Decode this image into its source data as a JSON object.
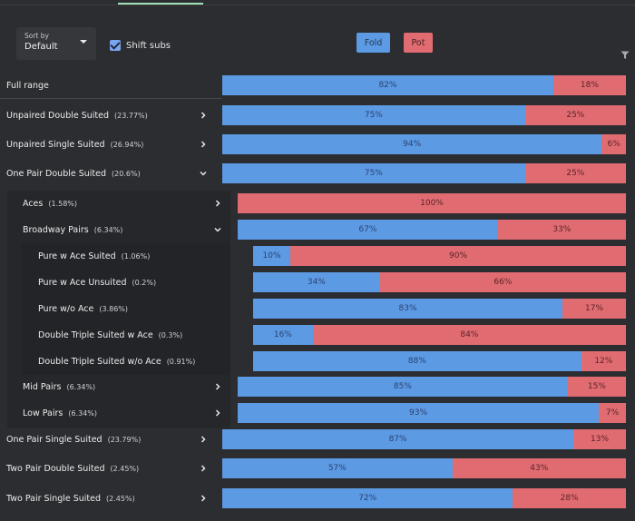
{
  "controls": {
    "sort_label": "Sort by",
    "sort_value": "Default",
    "shift_subs_label": "Shift subs",
    "shift_subs_checked": true
  },
  "legend": {
    "fold": "Fold",
    "pot": "Pot"
  },
  "colors": {
    "fold": "#5c9ae4",
    "pot": "#e06c72",
    "accent": "#9fe0b6"
  },
  "rows": [
    {
      "label": "Full range",
      "pct": "",
      "fold": 82,
      "pot": 18,
      "fold_label": "82%",
      "pot_label": "18%",
      "level": 0,
      "chevron": "none"
    },
    {
      "label": "Unpaired Double Suited",
      "pct": "(23.77%)",
      "fold": 75,
      "pot": 25,
      "fold_label": "75%",
      "pot_label": "25%",
      "level": 0,
      "chevron": "right"
    },
    {
      "label": "Unpaired Single Suited",
      "pct": "(26.94%)",
      "fold": 94,
      "pot": 6,
      "fold_label": "94%",
      "pot_label": "6%",
      "level": 0,
      "chevron": "right"
    },
    {
      "label": "One Pair Double Suited",
      "pct": "(20.6%)",
      "fold": 75,
      "pot": 25,
      "fold_label": "75%",
      "pot_label": "25%",
      "level": 0,
      "chevron": "down"
    },
    {
      "label": "Aces",
      "pct": "(1.58%)",
      "fold": 0,
      "pot": 100,
      "fold_label": "",
      "pot_label": "100%",
      "level": 1,
      "chevron": "right"
    },
    {
      "label": "Broadway Pairs",
      "pct": "(6.34%)",
      "fold": 67,
      "pot": 33,
      "fold_label": "67%",
      "pot_label": "33%",
      "level": 1,
      "chevron": "down"
    },
    {
      "label": "Pure w Ace Suited",
      "pct": "(1.06%)",
      "fold": 10,
      "pot": 90,
      "fold_label": "10%",
      "pot_label": "90%",
      "level": 2,
      "chevron": "none"
    },
    {
      "label": "Pure w Ace Unsuited",
      "pct": "(0.2%)",
      "fold": 34,
      "pot": 66,
      "fold_label": "34%",
      "pot_label": "66%",
      "level": 2,
      "chevron": "none"
    },
    {
      "label": "Pure w/o Ace",
      "pct": "(3.86%)",
      "fold": 83,
      "pot": 17,
      "fold_label": "83%",
      "pot_label": "17%",
      "level": 2,
      "chevron": "none"
    },
    {
      "label": "Double Triple Suited w Ace",
      "pct": "(0.3%)",
      "fold": 16,
      "pot": 84,
      "fold_label": "16%",
      "pot_label": "84%",
      "level": 2,
      "chevron": "none"
    },
    {
      "label": "Double Triple Suited w/o Ace",
      "pct": "(0.91%)",
      "fold": 88,
      "pot": 12,
      "fold_label": "88%",
      "pot_label": "12%",
      "level": 2,
      "chevron": "none"
    },
    {
      "label": "Mid Pairs",
      "pct": "(6.34%)",
      "fold": 85,
      "pot": 15,
      "fold_label": "85%",
      "pot_label": "15%",
      "level": 1,
      "chevron": "right"
    },
    {
      "label": "Low Pairs",
      "pct": "(6.34%)",
      "fold": 93,
      "pot": 7,
      "fold_label": "93%",
      "pot_label": "7%",
      "level": 1,
      "chevron": "right"
    },
    {
      "label": "One Pair Single Suited",
      "pct": "(23.79%)",
      "fold": 87,
      "pot": 13,
      "fold_label": "87%",
      "pot_label": "13%",
      "level": 0,
      "chevron": "right"
    },
    {
      "label": "Two Pair Double Suited",
      "pct": "(2.45%)",
      "fold": 57,
      "pot": 43,
      "fold_label": "57%",
      "pot_label": "43%",
      "level": 0,
      "chevron": "right"
    },
    {
      "label": "Two Pair Single Suited",
      "pct": "(2.45%)",
      "fold": 72,
      "pot": 28,
      "fold_label": "72%",
      "pot_label": "28%",
      "level": 0,
      "chevron": "right"
    }
  ]
}
